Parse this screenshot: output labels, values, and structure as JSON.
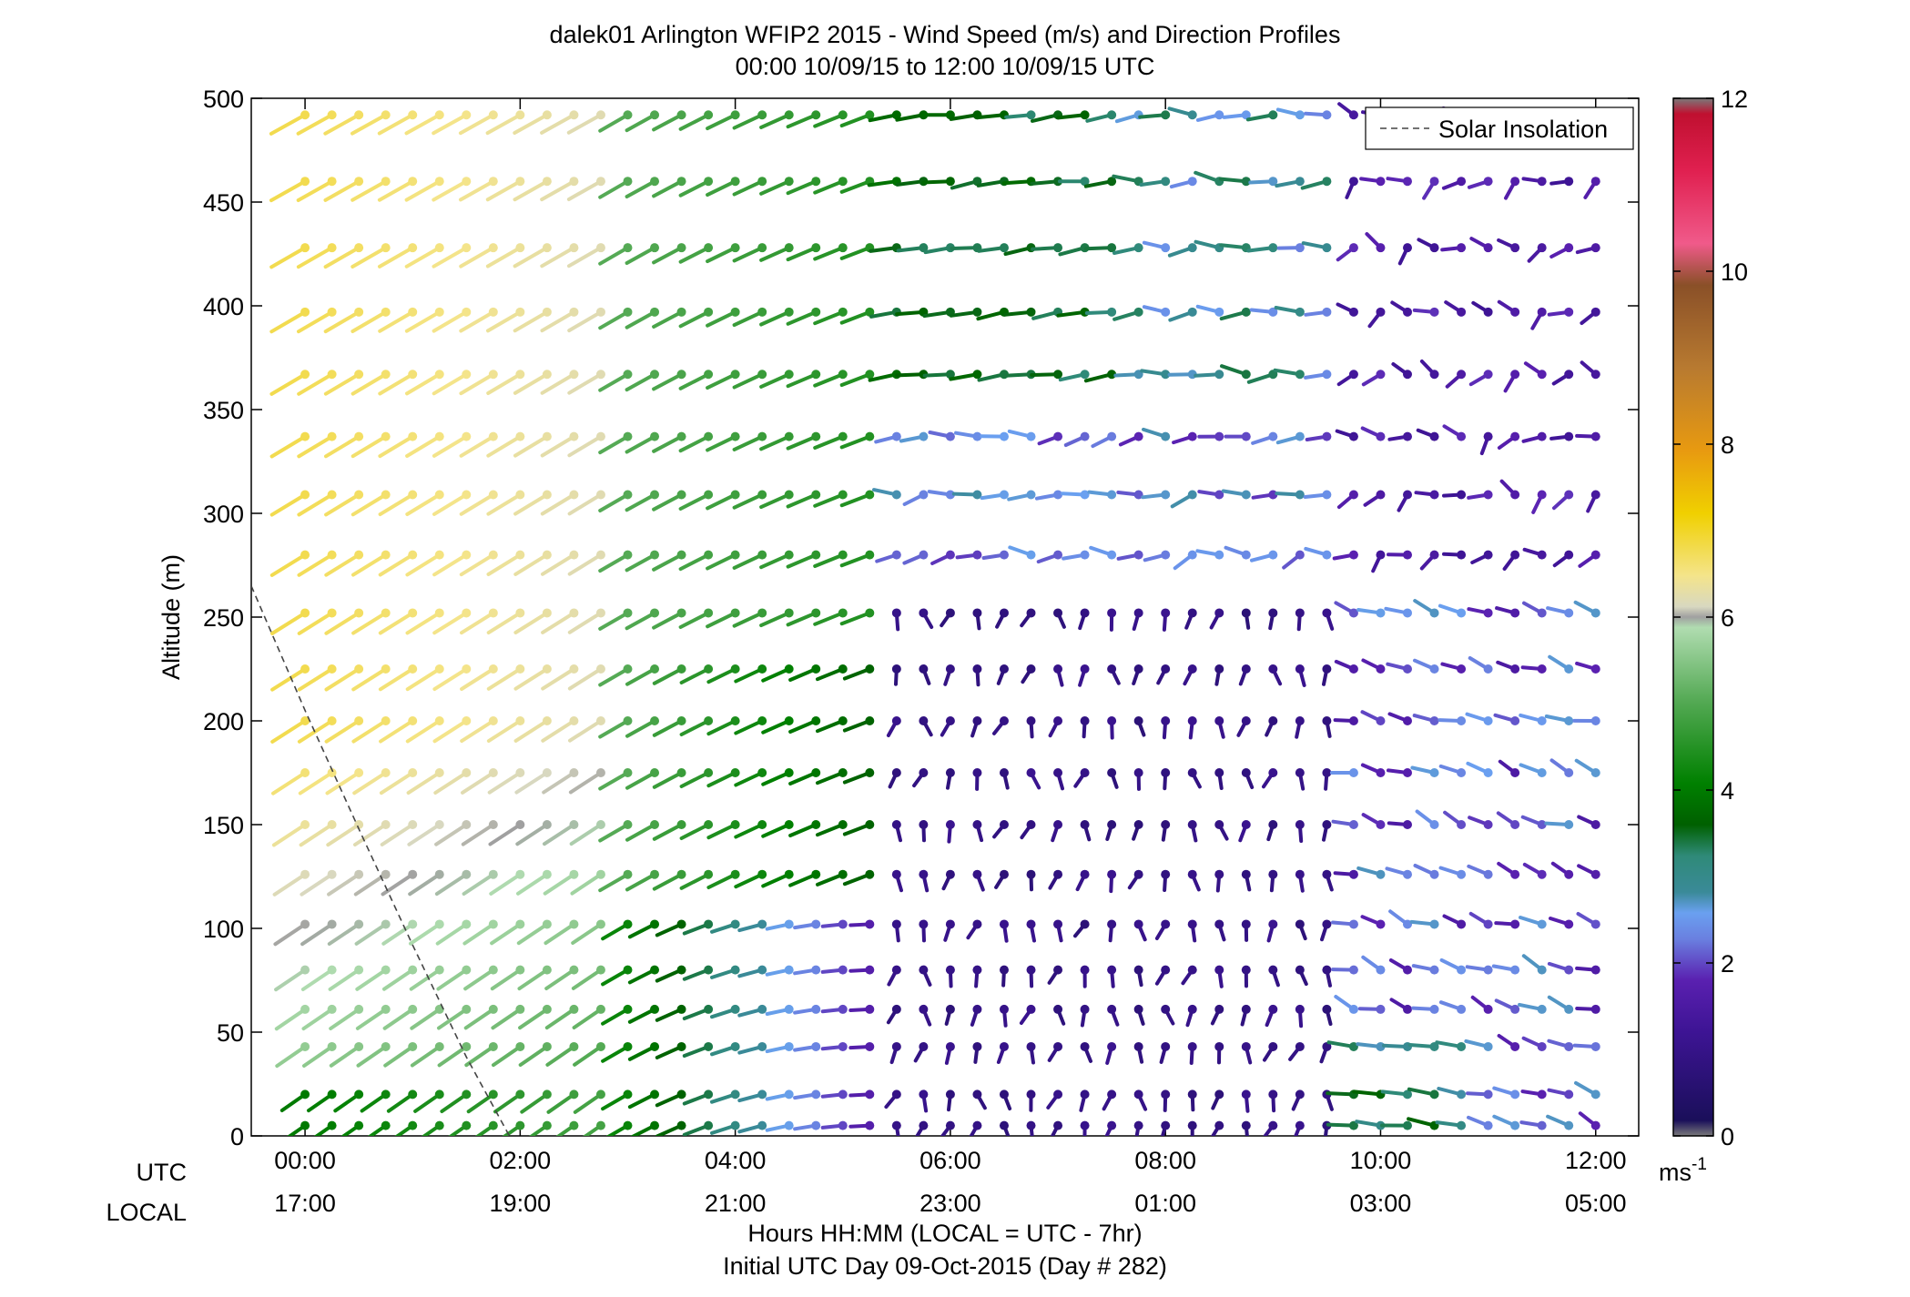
{
  "chart_data": {
    "type": "scatter",
    "title": "dalek01 Arlington WFIP2 2015 - Wind Speed (m/s) and Direction Profiles",
    "subtitle": "00:00 10/09/15 to 12:00 10/09/15  UTC",
    "ylabel": "Altitude (m)",
    "ylim": [
      0,
      500
    ],
    "yticks": [
      "0",
      "50",
      "100",
      "150",
      "200",
      "250",
      "300",
      "350",
      "400",
      "450",
      "500"
    ],
    "xlim_hours": [
      -0.5,
      12.4
    ],
    "utc_axis_label": "UTC",
    "local_axis_label": "LOCAL",
    "utc_ticks": [
      "00:00",
      "02:00",
      "04:00",
      "06:00",
      "08:00",
      "10:00",
      "12:00"
    ],
    "local_ticks": [
      "17:00",
      "19:00",
      "21:00",
      "23:00",
      "01:00",
      "03:00",
      "05:00"
    ],
    "xlabel_line1": "Hours HH:MM  (LOCAL = UTC - 7hr)",
    "xlabel_line2": "Initial UTC Day 09-Oct-2015 (Day # 282)",
    "legend": {
      "label": "Solar Insolation",
      "placement": "top-right"
    },
    "solar_insolation": {
      "x_hours": [
        -0.5,
        0.0,
        0.5,
        1.0,
        1.5,
        1.9
      ],
      "y": [
        265,
        205,
        148,
        92,
        38,
        0
      ]
    },
    "colorbar": {
      "unit": "ms",
      "unit_exponent": "-1",
      "ticks": [
        "0",
        "2",
        "4",
        "6",
        "8",
        "10",
        "12"
      ],
      "range": [
        0,
        12
      ],
      "colors": {
        "gray": "#a0a0a0",
        "navy": "#1a0f5a",
        "purple": "#5a20b0",
        "blue": "#6aa0f0",
        "teal": "#2f8a78",
        "green": "#008000",
        "lightgreen": "#a8d8a0",
        "yellow": "#f0d000",
        "orange": "#e89a10",
        "brown": "#8a5028",
        "red": "#d01030"
      }
    },
    "profiles": {
      "altitudes_m": [
        5,
        20,
        43,
        61,
        80,
        102,
        126,
        150,
        175,
        200,
        225,
        252,
        280,
        309,
        337,
        367,
        397,
        428,
        460,
        492
      ],
      "time_step_hours": 0.25,
      "hours_start": 0.0,
      "hours_end": 12.1,
      "typical_speed_ms": {
        "00:00-03:00": 5.5,
        "03:00-05:30 lower levels": 2.5,
        "05:30-09:30 below 250 m": 1.0,
        "05:30-09:00 above 300 m": 3.5,
        "09:30-12:00": 1.5
      },
      "typical_direction_from_deg": {
        "early": 235,
        "mid_upper": 255,
        "night_lower": 180,
        "late": 300
      }
    }
  }
}
